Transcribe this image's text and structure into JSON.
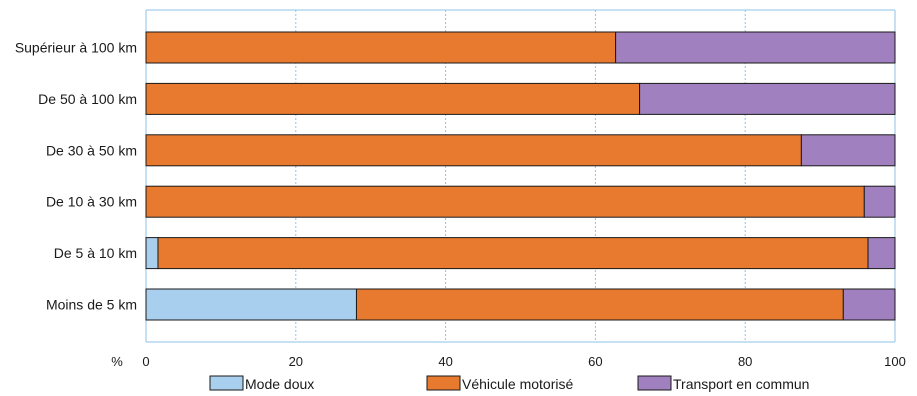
{
  "chart_data": {
    "type": "bar",
    "orientation": "horizontal",
    "stacked": true,
    "categories": [
      "Supérieur à 100 km",
      "De 50 à 100 km",
      "De 30 à 50 km",
      "De 10 à 30 km",
      "De 5 à 10 km",
      "Moins de 5 km"
    ],
    "series": [
      {
        "name": "Mode doux",
        "color": "#a9cfee",
        "values": [
          0,
          0,
          0,
          0,
          1.6,
          28.1
        ]
      },
      {
        "name": "Véhicule motorisé",
        "color": "#e87a2f",
        "values": [
          62.7,
          65.9,
          87.5,
          95.9,
          94.8,
          65.0
        ]
      },
      {
        "name": "Transport en commun",
        "color": "#a080be",
        "values": [
          37.3,
          34.1,
          12.5,
          4.1,
          3.6,
          6.9
        ]
      }
    ],
    "x_unit_label": "%",
    "x_ticks": [
      "0",
      "20",
      "40",
      "60",
      "80",
      "100"
    ],
    "xlim": [
      0,
      100
    ],
    "grid": "vertical dashed",
    "grid_color": "#8fc3e8",
    "legend_position": "bottom"
  }
}
